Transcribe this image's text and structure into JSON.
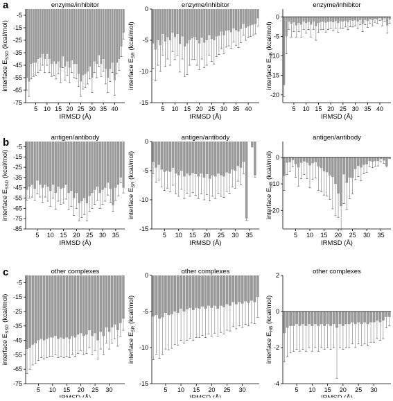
{
  "figure": {
    "row_labels": [
      "a",
      "b",
      "c"
    ]
  },
  "chart_data": [
    {
      "type": "bar",
      "panel": "a-1",
      "row": 0,
      "col": 0,
      "title": "enzyme/inhibitor",
      "ylabel_parts": [
        "interface E",
        "SSD",
        " (kcal/mol)"
      ],
      "xlabel": "IRMSD (Å)",
      "xlim": [
        0.5,
        44.5
      ],
      "ylim": [
        -75,
        0
      ],
      "xticks": [
        5,
        10,
        15,
        20,
        25,
        30,
        35,
        40
      ],
      "yticks": [
        -5,
        -15,
        -25,
        -35,
        -45,
        -55,
        -65,
        -75
      ],
      "x": [
        1,
        2,
        3,
        4,
        5,
        6,
        7,
        8,
        9,
        10,
        11,
        12,
        13,
        14,
        15,
        16,
        17,
        18,
        19,
        20,
        21,
        22,
        23,
        24,
        25,
        26,
        27,
        28,
        29,
        30,
        31,
        32,
        33,
        34,
        35,
        36,
        37,
        38,
        39,
        40,
        41,
        42,
        43,
        44
      ],
      "values": [
        -55,
        -58,
        -44,
        -43,
        -43,
        -40,
        -39,
        -36,
        -40,
        -36,
        -40,
        -44,
        -42,
        -44,
        -42,
        -47,
        -38,
        -46,
        -42,
        -47,
        -41,
        -44,
        -44,
        -52,
        -58,
        -53,
        -52,
        -50,
        -46,
        -55,
        -42,
        -44,
        -37,
        -44,
        -40,
        -48,
        -55,
        -48,
        -43,
        -57,
        -43,
        -40,
        -30,
        -19
      ],
      "errors": [
        10,
        12,
        12,
        11,
        10,
        11,
        10,
        9,
        11,
        9,
        11,
        10,
        11,
        12,
        10,
        12,
        9,
        11,
        11,
        12,
        10,
        11,
        12,
        10,
        12,
        11,
        11,
        10,
        10,
        12,
        9,
        11,
        9,
        10,
        10,
        12,
        12,
        10,
        8,
        12,
        9,
        9,
        8,
        5
      ]
    },
    {
      "type": "bar",
      "panel": "a-2",
      "row": 0,
      "col": 1,
      "title": "enzyme/inhibitor",
      "ylabel_parts": [
        "interface E",
        "SR",
        " (kcal/mol)"
      ],
      "xlabel": "IRMSD (Å)",
      "xlim": [
        0.5,
        44.5
      ],
      "ylim": [
        -15,
        0
      ],
      "xticks": [
        5,
        10,
        15,
        20,
        25,
        30,
        35,
        40
      ],
      "yticks": [
        0,
        -5,
        -10,
        -15
      ],
      "x": [
        1,
        2,
        3,
        4,
        5,
        6,
        7,
        8,
        9,
        10,
        11,
        12,
        13,
        14,
        15,
        16,
        17,
        18,
        19,
        20,
        21,
        22,
        23,
        24,
        25,
        26,
        27,
        28,
        29,
        30,
        31,
        32,
        33,
        34,
        35,
        36,
        37,
        38,
        39,
        40,
        41,
        42,
        43,
        44
      ],
      "values": [
        -5.5,
        -6.5,
        -5,
        -5.8,
        -4,
        -5.2,
        -4.5,
        -5,
        -3.8,
        -4.5,
        -4,
        -5.6,
        -4.4,
        -6,
        -5.5,
        -5,
        -4.7,
        -4.5,
        -5,
        -5.5,
        -4.6,
        -5.4,
        -5,
        -4.2,
        -4.8,
        -5,
        -4.4,
        -4.3,
        -3.6,
        -4.2,
        -3.5,
        -3.4,
        -3.7,
        -3.1,
        -3.4,
        -3.6,
        -3.2,
        -2.4,
        -3,
        -2.8,
        -2.6,
        -2.5,
        -2.4,
        -1.5
      ],
      "errors": [
        4,
        5,
        4,
        4.2,
        3.4,
        4,
        3.5,
        4,
        3,
        3.6,
        3.4,
        4.5,
        3.6,
        4.8,
        5,
        4,
        3.4,
        3.6,
        4,
        4.2,
        3.4,
        4,
        4,
        3.2,
        3.6,
        3.8,
        3.2,
        3,
        2.8,
        3,
        2.6,
        2.5,
        2.6,
        2.2,
        2.4,
        2.6,
        2.2,
        1.8,
        2,
        1.8,
        1.8,
        1.7,
        1.6,
        1.2
      ]
    },
    {
      "type": "bar",
      "panel": "a-3",
      "row": 0,
      "col": 2,
      "title": "enzyme/inhibitor",
      "ylabel_parts": [
        "interface E",
        "HB",
        " (kcal/mol)"
      ],
      "xlabel": "IRMSD (Å)",
      "xlim": [
        0.5,
        44.5
      ],
      "ylim": [
        -22,
        2
      ],
      "xticks": [
        5,
        10,
        15,
        20,
        25,
        30,
        35,
        40
      ],
      "yticks": [
        0,
        -5,
        -10,
        -15,
        -20
      ],
      "x": [
        1,
        2,
        3,
        4,
        5,
        6,
        7,
        8,
        9,
        10,
        11,
        12,
        13,
        14,
        15,
        16,
        17,
        18,
        19,
        20,
        21,
        22,
        23,
        24,
        25,
        26,
        27,
        28,
        29,
        30,
        31,
        32,
        33,
        34,
        35,
        36,
        37,
        38,
        39,
        40,
        41,
        42,
        43,
        44
      ],
      "values": [
        -17.5,
        -5,
        -1.2,
        -1.8,
        -1.4,
        -2.2,
        -1.6,
        -2,
        -1.2,
        -1.6,
        -1.3,
        -2,
        -1.2,
        -2.4,
        -1.6,
        -1.3,
        -1.2,
        -1.5,
        -1.3,
        -1.2,
        -1.4,
        -1.1,
        -1.6,
        -1.1,
        -1.2,
        -1,
        -1.3,
        -0.9,
        -1,
        -0.9,
        -1.2,
        -0.8,
        -1.8,
        -0.8,
        -1.1,
        -0.6,
        -0.9,
        -0.5,
        -0.7,
        -0.3,
        -0.9,
        -0.4,
        -2.2,
        -0.7
      ],
      "errors": [
        3,
        4.5,
        2,
        3.4,
        2.4,
        3,
        2.2,
        3.2,
        2,
        2.6,
        2,
        3.2,
        2,
        3.6,
        2.4,
        2,
        2,
        2.4,
        2,
        1.8,
        2.2,
        1.8,
        2.4,
        1.8,
        1.8,
        1.6,
        2,
        1.6,
        1.6,
        1.4,
        1.8,
        1.2,
        2,
        1.2,
        1.6,
        1,
        1.4,
        0.9,
        1,
        0.6,
        1.4,
        0.7,
        2,
        1
      ]
    },
    {
      "type": "bar",
      "panel": "b-1",
      "row": 1,
      "col": 0,
      "title": "antigen/antibody",
      "ylabel_parts": [
        "interface E",
        "SSD",
        " (kcal/mol)"
      ],
      "xlabel": "IRMSD (Å)",
      "xlim": [
        0.5,
        38.5
      ],
      "ylim": [
        -85,
        0
      ],
      "xticks": [
        5,
        10,
        15,
        20,
        25,
        30,
        35
      ],
      "yticks": [
        -5,
        -15,
        -25,
        -35,
        -45,
        -55,
        -65,
        -75,
        -85
      ],
      "x": [
        1,
        2,
        3,
        4,
        5,
        6,
        7,
        8,
        9,
        10,
        11,
        12,
        13,
        14,
        15,
        16,
        17,
        18,
        19,
        20,
        21,
        22,
        23,
        24,
        25,
        26,
        27,
        28,
        29,
        30,
        31,
        32,
        33,
        34,
        35,
        36,
        37,
        38
      ],
      "values": [
        -47,
        -44,
        -42,
        -46,
        -38,
        -42,
        -45,
        -42,
        -44,
        -48,
        -42,
        -50,
        -44,
        -46,
        -45,
        -42,
        -50,
        -48,
        -55,
        -50,
        -60,
        -58,
        -55,
        -60,
        -53,
        -50,
        -47,
        -44,
        -50,
        -47,
        -45,
        -40,
        -46,
        -62,
        -45,
        -42,
        -35,
        -45
      ],
      "errors": [
        10,
        11,
        12,
        11,
        13,
        12,
        14,
        12,
        14,
        15,
        13,
        16,
        14,
        15,
        15,
        14,
        16,
        15,
        17,
        15,
        17,
        16,
        16,
        17,
        15,
        15,
        14,
        13,
        15,
        14,
        13,
        12,
        13,
        6,
        12,
        11,
        5,
        5
      ]
    },
    {
      "type": "bar",
      "panel": "b-2",
      "row": 1,
      "col": 1,
      "title": "antigen/antibody",
      "ylabel_parts": [
        "interface E",
        "SR",
        " (kcal/mol)"
      ],
      "xlabel": "IRMSD (Å)",
      "xlim": [
        0.5,
        38.5
      ],
      "ylim": [
        -15,
        0
      ],
      "xticks": [
        5,
        10,
        15,
        20,
        25,
        30,
        35
      ],
      "yticks": [
        0,
        -5,
        -10,
        -15
      ],
      "x": [
        1,
        2,
        3,
        4,
        5,
        6,
        7,
        8,
        9,
        10,
        11,
        12,
        13,
        14,
        15,
        16,
        17,
        18,
        19,
        20,
        21,
        22,
        23,
        24,
        25,
        26,
        27,
        28,
        29,
        30,
        31,
        32,
        33,
        34,
        35,
        36,
        37,
        38
      ],
      "values": [
        -3.5,
        -4.5,
        -4,
        -4.8,
        -5.2,
        -5,
        -5.2,
        -4.5,
        -5.5,
        -5.8,
        -5,
        -6,
        -5.5,
        -5.8,
        -5.4,
        -5.6,
        -6,
        -5.5,
        -6.2,
        -5.6,
        -6.4,
        -5.8,
        -6,
        -5.5,
        -5.8,
        -6,
        -5.3,
        -5.5,
        -4.8,
        -5,
        -4.2,
        -4.5,
        -3.5,
        -13.2,
        0,
        -1,
        -5.8,
        0
      ],
      "errors": [
        2,
        2.5,
        2.6,
        3,
        3.2,
        3,
        3.4,
        3,
        3.5,
        3.6,
        3.2,
        3.8,
        3.4,
        3.6,
        3.4,
        3.6,
        3.8,
        3.5,
        3.8,
        3.5,
        3.8,
        3.6,
        3.8,
        3.4,
        3.6,
        3.6,
        3.2,
        3.4,
        3,
        3,
        2.6,
        2.8,
        2,
        0.3,
        0,
        0,
        0.3,
        0
      ]
    },
    {
      "type": "bar",
      "panel": "b-3",
      "row": 1,
      "col": 2,
      "title": "antigen/antibody",
      "ylabel_parts": [
        "interface E",
        "HB",
        " (kcal/mol)"
      ],
      "xlabel": "IRMSD (Å)",
      "xlim": [
        0.5,
        38.5
      ],
      "ylim": [
        -27,
        6
      ],
      "xticks": [
        5,
        10,
        15,
        20,
        25,
        30,
        35
      ],
      "yticks": [
        0,
        -10,
        -20
      ],
      "x": [
        1,
        2,
        3,
        4,
        5,
        6,
        7,
        8,
        9,
        10,
        11,
        12,
        13,
        14,
        15,
        16,
        17,
        18,
        19,
        20,
        21,
        22,
        23,
        24,
        25,
        26,
        27,
        28,
        29,
        30,
        31,
        32,
        33,
        34,
        35,
        36,
        37,
        38
      ],
      "values": [
        -7,
        -2,
        -1.8,
        -1,
        -2.5,
        -3.8,
        -2,
        -1.5,
        -2,
        -3,
        -2.2,
        -1.8,
        -3.4,
        -4,
        -5.2,
        -5.6,
        -6.8,
        -7.4,
        -10,
        -13.6,
        -18.4,
        -6.4,
        -9.6,
        -7.6,
        -7.8,
        -4.4,
        -3.2,
        -3.8,
        -2.8,
        -2.6,
        -1.4,
        -1.6,
        -1.4,
        -1.4,
        -0.6,
        -1.2,
        -3.2,
        -0.2
      ],
      "errors": [
        5.5,
        4.5,
        3.5,
        2.5,
        5,
        7,
        6,
        5,
        6,
        8.5,
        6,
        6,
        9,
        9,
        9,
        9,
        9,
        12,
        12,
        9,
        9,
        11,
        10,
        8,
        6,
        4,
        4,
        5,
        3.4,
        3,
        2,
        2.2,
        2,
        1.8,
        1,
        1,
        0.3,
        0.2
      ]
    },
    {
      "type": "bar",
      "panel": "c-1",
      "row": 2,
      "col": 0,
      "title": "other complexes",
      "ylabel_parts": [
        "interface E",
        "SSD",
        " (kcal/mol)"
      ],
      "xlabel": "IRMSD (Å)",
      "xlim": [
        0.5,
        35.5
      ],
      "ylim": [
        -75,
        0
      ],
      "xticks": [
        5,
        10,
        15,
        20,
        25,
        30
      ],
      "yticks": [
        -5,
        -15,
        -25,
        -35,
        -45,
        -55,
        -65,
        -75
      ],
      "x": [
        1,
        2,
        3,
        4,
        5,
        6,
        7,
        8,
        9,
        10,
        11,
        12,
        13,
        14,
        15,
        16,
        17,
        18,
        19,
        20,
        21,
        22,
        23,
        24,
        25,
        26,
        27,
        28,
        29,
        30,
        31,
        32,
        33,
        34,
        35
      ],
      "values": [
        -51,
        -50,
        -48,
        -47,
        -45,
        -44,
        -45,
        -44,
        -43,
        -43,
        -42,
        -44,
        -43,
        -44,
        -43,
        -44,
        -42,
        -43,
        -41,
        -40,
        -42,
        -41,
        -38,
        -42,
        -40,
        -45,
        -39,
        -42,
        -36,
        -39,
        -36,
        -34,
        -38,
        -33,
        -30
      ],
      "errors": [
        17,
        15,
        14,
        14,
        14,
        13,
        13,
        13,
        13,
        13,
        13,
        13,
        13,
        13,
        13,
        13,
        13,
        13,
        13,
        12,
        13,
        13,
        12,
        13,
        12,
        13,
        12,
        13,
        11,
        12,
        11,
        10,
        11,
        9,
        8
      ]
    },
    {
      "type": "bar",
      "panel": "c-2",
      "row": 2,
      "col": 1,
      "title": "other complexes",
      "ylabel_parts": [
        "interface E",
        "SR",
        " (kcal/mol)"
      ],
      "xlabel": "IRMSD (Å)",
      "xlim": [
        0.5,
        35.5
      ],
      "ylim": [
        -15,
        0
      ],
      "xticks": [
        5,
        10,
        15,
        20,
        25,
        30
      ],
      "yticks": [
        0,
        -5,
        -10,
        -15
      ],
      "x": [
        1,
        2,
        3,
        4,
        5,
        6,
        7,
        8,
        9,
        10,
        11,
        12,
        13,
        14,
        15,
        16,
        17,
        18,
        19,
        20,
        21,
        22,
        23,
        24,
        25,
        26,
        27,
        28,
        29,
        30,
        31,
        32,
        33,
        34,
        35
      ],
      "values": [
        -5.7,
        -5.5,
        -6,
        -5.8,
        -5.2,
        -5.5,
        -5.4,
        -5,
        -5.2,
        -4.6,
        -5,
        -4.7,
        -4.5,
        -4.8,
        -4.5,
        -4.6,
        -4.3,
        -4.6,
        -4.2,
        -4.5,
        -4.2,
        -4.6,
        -4.2,
        -4.4,
        -4,
        -4.2,
        -3.7,
        -4,
        -3.7,
        -3.9,
        -3.6,
        -3.8,
        -3.5,
        -3.7,
        -3
      ],
      "errors": [
        6,
        5.4,
        5.5,
        5.2,
        5,
        4.8,
        4.7,
        4.6,
        4.5,
        4.4,
        4.4,
        4.3,
        4.2,
        4.2,
        4.1,
        4,
        4,
        4,
        3.9,
        3.9,
        3.8,
        3.8,
        3.7,
        3.7,
        3.6,
        3.5,
        3.4,
        3.4,
        3.3,
        3.3,
        3.2,
        3.2,
        3.1,
        3,
        2.8
      ]
    },
    {
      "type": "bar",
      "panel": "c-3",
      "row": 2,
      "col": 2,
      "title": "other complexes",
      "ylabel_parts": [
        "interface E",
        "HB",
        " (kcal/mol)"
      ],
      "xlabel": "IRMSD (Å)",
      "xlim": [
        0.5,
        35.5
      ],
      "ylim": [
        -4,
        2
      ],
      "xticks": [
        5,
        10,
        15,
        20,
        25,
        30
      ],
      "yticks": [
        2,
        0,
        -2,
        -4
      ],
      "x": [
        1,
        2,
        3,
        4,
        5,
        6,
        7,
        8,
        9,
        10,
        11,
        12,
        13,
        14,
        15,
        16,
        17,
        18,
        19,
        20,
        21,
        22,
        23,
        24,
        25,
        26,
        27,
        28,
        29,
        30,
        31,
        32,
        33,
        34,
        35
      ],
      "values": [
        -1.2,
        -0.9,
        -0.8,
        -0.8,
        -0.7,
        -0.8,
        -0.7,
        -0.8,
        -0.7,
        -0.8,
        -0.7,
        -0.8,
        -0.7,
        -0.8,
        -0.7,
        -0.8,
        -0.7,
        -0.9,
        -0.7,
        -0.8,
        -0.7,
        -0.7,
        -0.6,
        -0.7,
        -0.6,
        -0.7,
        -0.6,
        -0.7,
        -0.6,
        -0.6,
        -0.5,
        -0.6,
        -0.5,
        -0.3,
        -0.3
      ],
      "errors": [
        1.6,
        1.6,
        1.5,
        1.4,
        1.4,
        1.4,
        1.4,
        1.4,
        1.3,
        1.4,
        1.3,
        1.4,
        1.3,
        1.3,
        1.3,
        1.3,
        1.3,
        2.8,
        1.3,
        1.3,
        1.3,
        1.3,
        1.2,
        1.3,
        1.2,
        1.2,
        1.2,
        1.2,
        1.1,
        1.1,
        1,
        1,
        1,
        0.6,
        0.5
      ]
    }
  ]
}
